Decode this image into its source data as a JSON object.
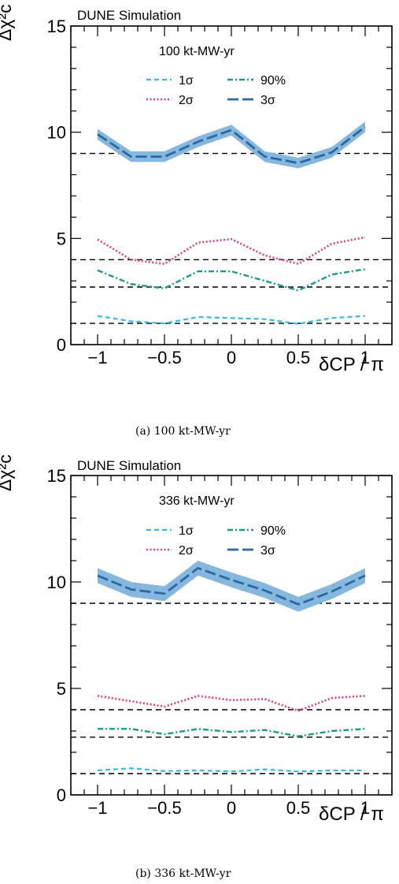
{
  "colors": {
    "sigma1": "#38b7e6",
    "sigma2": "#e0407a",
    "pct90": "#1b9a86",
    "sigma3_line": "#2a68a6",
    "sigma3_band": "#86b7dc",
    "threshold": "#000000"
  },
  "chart_data": [
    {
      "type": "line",
      "watermark": "DUNE Simulation",
      "legend_title": "100 kt-MW-yr",
      "caption": "(a) 100 kt-MW-yr",
      "ylabel": "Δχ²c",
      "xlabel": "δCP / π",
      "xlim": [
        -1.2,
        1.2
      ],
      "ylim": [
        0,
        15
      ],
      "xticks": [
        "−1",
        "−0.5",
        "0",
        "0.5",
        "1"
      ],
      "yticks": [
        "0",
        "5",
        "10",
        "15"
      ],
      "legend_position": "top-center",
      "x": [
        -1,
        -0.75,
        -0.5,
        -0.25,
        0,
        0.25,
        0.5,
        0.75,
        1
      ],
      "series": [
        {
          "name": "1σ",
          "style": "dashed",
          "values": [
            1.35,
            1.1,
            1.0,
            1.3,
            1.25,
            1.2,
            0.98,
            1.25,
            1.35
          ]
        },
        {
          "name": "2σ",
          "style": "dotted",
          "values": [
            4.95,
            4.0,
            3.8,
            4.8,
            4.97,
            4.2,
            3.8,
            4.75,
            5.05
          ]
        },
        {
          "name": "90%",
          "style": "dashdot",
          "values": [
            3.5,
            2.85,
            2.65,
            3.45,
            3.45,
            3.0,
            2.55,
            3.3,
            3.55
          ]
        },
        {
          "name": "3σ",
          "style": "longdash",
          "values": [
            9.9,
            8.85,
            8.85,
            9.55,
            10.1,
            8.85,
            8.55,
            9.05,
            10.25
          ],
          "band": 0.25
        }
      ],
      "reference_lines": [
        1,
        2.71,
        4,
        9
      ]
    },
    {
      "type": "line",
      "watermark": "DUNE Simulation",
      "legend_title": "336 kt-MW-yr",
      "caption": "(b) 336 kt-MW-yr",
      "ylabel": "Δχ²c",
      "xlabel": "δCP / π",
      "xlim": [
        -1.2,
        1.2
      ],
      "ylim": [
        0,
        15
      ],
      "xticks": [
        "−1",
        "−0.5",
        "0",
        "0.5",
        "1"
      ],
      "yticks": [
        "0",
        "5",
        "10",
        "15"
      ],
      "legend_position": "top-center",
      "x": [
        -1,
        -0.75,
        -0.5,
        -0.25,
        0,
        0.25,
        0.5,
        0.75,
        1
      ],
      "series": [
        {
          "name": "1σ",
          "style": "dashed",
          "values": [
            1.15,
            1.25,
            1.12,
            1.15,
            1.1,
            1.2,
            1.1,
            1.15,
            1.15
          ]
        },
        {
          "name": "2σ",
          "style": "dotted",
          "values": [
            4.65,
            4.4,
            4.15,
            4.65,
            4.45,
            4.5,
            3.95,
            4.55,
            4.65
          ]
        },
        {
          "name": "90%",
          "style": "dashdot",
          "values": [
            3.1,
            3.1,
            2.85,
            3.1,
            2.95,
            3.05,
            2.75,
            3.0,
            3.1
          ]
        },
        {
          "name": "3σ",
          "style": "longdash",
          "values": [
            10.3,
            9.65,
            9.45,
            10.65,
            10.1,
            9.6,
            8.95,
            9.55,
            10.3
          ],
          "band": 0.35
        }
      ],
      "reference_lines": [
        1,
        2.71,
        4,
        9
      ]
    }
  ]
}
